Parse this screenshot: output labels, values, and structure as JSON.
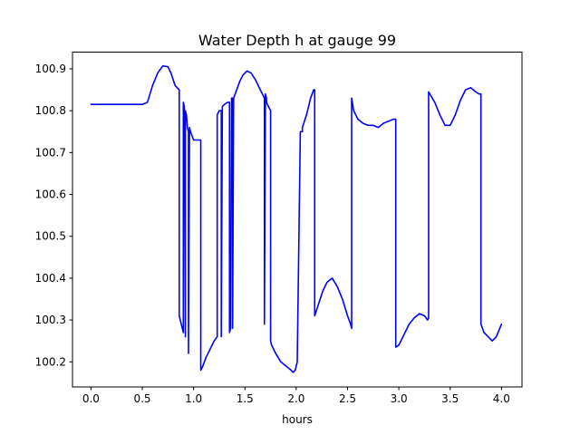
{
  "chart_data": {
    "type": "line",
    "title": "Water Depth h at gauge 99",
    "xlabel": "hours",
    "ylabel": "",
    "xlim": [
      -0.18,
      4.2
    ],
    "ylim": [
      100.14,
      100.94
    ],
    "xticks": [
      0.0,
      0.5,
      1.0,
      1.5,
      2.0,
      2.5,
      3.0,
      3.5,
      4.0
    ],
    "xtick_labels": [
      "0.0",
      "0.5",
      "1.0",
      "1.5",
      "2.0",
      "2.5",
      "3.0",
      "3.5",
      "4.0"
    ],
    "yticks": [
      100.2,
      100.3,
      100.4,
      100.5,
      100.6,
      100.7,
      100.8,
      100.9
    ],
    "ytick_labels": [
      "100.2",
      "100.3",
      "100.4",
      "100.5",
      "100.6",
      "100.7",
      "100.8",
      "100.9"
    ],
    "grid": false,
    "series": [
      {
        "color": "#0000ff",
        "x": [
          0.0,
          0.3,
          0.5,
          0.55,
          0.6,
          0.65,
          0.7,
          0.75,
          0.78,
          0.82,
          0.86,
          0.86,
          0.88,
          0.9,
          0.9,
          0.91,
          0.92,
          0.92,
          0.93,
          0.94,
          0.95,
          0.95,
          0.96,
          0.97,
          1.0,
          1.03,
          1.07,
          1.07,
          1.09,
          1.12,
          1.16,
          1.2,
          1.23,
          1.23,
          1.25,
          1.26,
          1.27,
          1.27,
          1.28,
          1.3,
          1.33,
          1.35,
          1.35,
          1.36,
          1.37,
          1.38,
          1.38,
          1.39,
          1.42,
          1.45,
          1.48,
          1.52,
          1.56,
          1.6,
          1.64,
          1.67,
          1.69,
          1.69,
          1.7,
          1.71,
          1.71,
          1.73,
          1.75,
          1.75,
          1.76,
          1.8,
          1.85,
          1.9,
          1.95,
          1.97,
          1.99,
          2.01,
          2.04,
          2.06,
          2.06,
          2.1,
          2.14,
          2.17,
          2.18,
          2.18,
          2.22,
          2.26,
          2.3,
          2.35,
          2.4,
          2.45,
          2.5,
          2.53,
          2.54,
          2.54,
          2.56,
          2.6,
          2.65,
          2.7,
          2.75,
          2.8,
          2.85,
          2.9,
          2.95,
          2.97,
          2.97,
          3.0,
          3.05,
          3.1,
          3.15,
          3.2,
          3.25,
          3.28,
          3.29,
          3.29,
          3.35,
          3.4,
          3.45,
          3.5,
          3.55,
          3.6,
          3.65,
          3.7,
          3.75,
          3.78,
          3.8,
          3.8,
          3.83,
          3.87,
          3.91,
          3.95,
          4.0
        ],
        "y": [
          100.815,
          100.815,
          100.815,
          100.82,
          100.86,
          100.89,
          100.907,
          100.905,
          100.89,
          100.86,
          100.85,
          100.31,
          100.29,
          100.27,
          100.82,
          100.81,
          100.26,
          100.8,
          100.79,
          100.76,
          100.75,
          100.22,
          100.76,
          100.75,
          100.73,
          100.73,
          100.73,
          100.18,
          100.19,
          100.21,
          100.23,
          100.25,
          100.26,
          100.79,
          100.8,
          100.8,
          100.8,
          100.26,
          100.81,
          100.815,
          100.82,
          100.82,
          100.27,
          100.28,
          100.83,
          100.83,
          100.28,
          100.83,
          100.85,
          100.87,
          100.885,
          100.895,
          100.89,
          100.875,
          100.855,
          100.84,
          100.83,
          100.29,
          100.84,
          100.83,
          100.82,
          100.81,
          100.8,
          100.25,
          100.24,
          100.22,
          100.2,
          100.19,
          100.18,
          100.175,
          100.18,
          100.2,
          100.75,
          100.75,
          100.76,
          100.79,
          100.83,
          100.85,
          100.85,
          100.31,
          100.34,
          100.37,
          100.39,
          100.4,
          100.38,
          100.35,
          100.31,
          100.29,
          100.28,
          100.83,
          100.8,
          100.78,
          100.77,
          100.765,
          100.765,
          100.76,
          100.77,
          100.775,
          100.78,
          100.78,
          100.235,
          100.24,
          100.265,
          100.29,
          100.305,
          100.315,
          100.31,
          100.3,
          100.305,
          100.845,
          100.82,
          100.79,
          100.765,
          100.765,
          100.79,
          100.825,
          100.85,
          100.855,
          100.845,
          100.84,
          100.84,
          100.29,
          100.27,
          100.26,
          100.25,
          100.26,
          100.29
        ]
      }
    ]
  }
}
